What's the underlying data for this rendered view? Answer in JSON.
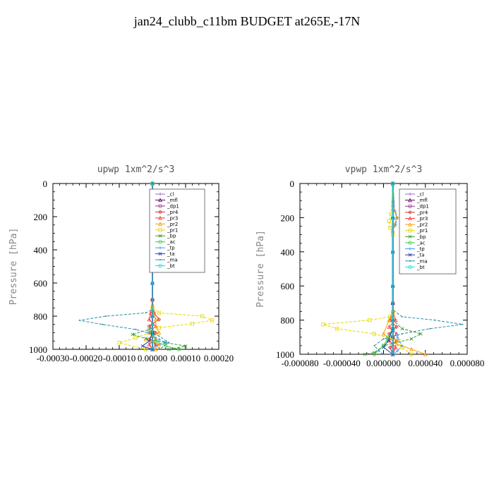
{
  "page_title": "jan24_clubb_c11bm  BUDGET at265E,-17N",
  "colors": {
    "_cl": "#9966cc",
    "_mfl": "#660066",
    "_dp1": "#993399",
    "_pr4": "#cc3333",
    "_pr3": "#ff3333",
    "_pr2": "#ff9900",
    "_pr1": "#e6d800",
    "_bp": "#339933",
    "_ac": "#33cc33",
    "_tp": "#3399ff",
    "_ta": "#1f3f9f",
    "_ma": "#2a8fa8",
    "_bt": "#00e5e5"
  },
  "chart_data": [
    {
      "type": "line",
      "title": "upwp   1xm^2/s^3",
      "ylabel": "Pressure [hPa]",
      "xlim": [
        -0.0003,
        0.0002
      ],
      "ylim": [
        1000,
        0
      ],
      "x_tick_labels": [
        "-0.00030",
        "-0.00020",
        "-0.00010",
        "0.00000",
        "0.00010",
        "0.00020"
      ],
      "y_tick_labels": [
        "0",
        "200",
        "400",
        "600",
        "800",
        "1000"
      ],
      "legend": [
        "_cl",
        "_mfl",
        "_dp1",
        "_pr4",
        "_pr3",
        "_pr2",
        "_pr1",
        "_bp",
        "_ac",
        "_tp",
        "_ta",
        "_ma",
        "_bt"
      ],
      "legend_position": "top-right",
      "series": [
        {
          "name": "_cl",
          "y": [
            0,
            200,
            400,
            600,
            700,
            800,
            900,
            1000
          ],
          "x": [
            0,
            0,
            0,
            0,
            0,
            0,
            0,
            0
          ]
        },
        {
          "name": "_mfl",
          "y": [
            0,
            200,
            400,
            600,
            700,
            800,
            900,
            1000
          ],
          "x": [
            0,
            0,
            0,
            0,
            0,
            0,
            0,
            0
          ]
        },
        {
          "name": "_dp1",
          "y": [
            0,
            200,
            400,
            600,
            700,
            800,
            900,
            1000
          ],
          "x": [
            0,
            0,
            0,
            0,
            0,
            0,
            0,
            0
          ]
        },
        {
          "name": "_pr4",
          "y": [
            0,
            700,
            780,
            820,
            860,
            900,
            940,
            970,
            1000
          ],
          "x": [
            0,
            0,
            5e-06,
            2e-05,
            -1e-05,
            1e-05,
            -1e-05,
            1e-05,
            0
          ]
        },
        {
          "name": "_pr3",
          "y": [
            0,
            700,
            780,
            820,
            860,
            900,
            940,
            970,
            1000
          ],
          "x": [
            0,
            0,
            -5e-06,
            -1e-05,
            1e-05,
            -1e-05,
            1e-05,
            -1e-05,
            0
          ]
        },
        {
          "name": "_pr2",
          "y": [
            0,
            750,
            820,
            860,
            900,
            940,
            970,
            1000
          ],
          "x": [
            0,
            0,
            1e-05,
            1e-05,
            2e-05,
            -2e-05,
            2e-05,
            1e-05
          ]
        },
        {
          "name": "_pr1",
          "y": [
            0,
            750,
            780,
            800,
            825,
            845,
            870,
            900,
            930,
            960,
            1000
          ],
          "x": [
            0,
            0,
            2e-05,
            0.00015,
            0.00018,
            0.00012,
            2e-05,
            -1e-05,
            -5e-05,
            -0.0001,
            -2e-05
          ]
        },
        {
          "name": "_bp",
          "y": [
            0,
            850,
            880,
            910,
            935,
            960,
            980,
            1000
          ],
          "x": [
            0,
            0,
            -1e-05,
            -6e-05,
            -2e-05,
            4e-05,
            0.0001,
            5e-05
          ]
        },
        {
          "name": "_ac",
          "y": [
            0,
            900,
            950,
            980,
            1000
          ],
          "x": [
            0,
            0,
            1e-05,
            4e-05,
            8e-05
          ]
        },
        {
          "name": "_tp",
          "y": [
            0,
            850,
            900,
            940,
            960,
            980,
            1000
          ],
          "x": [
            0,
            0,
            -1e-05,
            2e-05,
            4e-05,
            1e-05,
            0
          ]
        },
        {
          "name": "_ta",
          "y": [
            0,
            900,
            950,
            980,
            1000
          ],
          "x": [
            0,
            0,
            -1e-05,
            -3e-05,
            0
          ]
        },
        {
          "name": "_ma",
          "y": [
            0,
            760,
            780,
            800,
            825,
            850,
            880,
            920,
            960,
            1000
          ],
          "x": [
            0,
            0,
            -2e-05,
            -0.00014,
            -0.00022,
            -0.00015,
            -5e-05,
            2e-05,
            5e-05,
            2e-05
          ]
        },
        {
          "name": "_bt",
          "y": [
            0,
            200,
            400,
            600,
            800,
            1000
          ],
          "x": [
            0,
            0,
            0,
            0,
            0,
            0
          ]
        }
      ]
    },
    {
      "type": "line",
      "title": "vpwp   1xm^2/s^3",
      "ylabel": "Pressure [hPa]",
      "xlim": [
        -0.0001,
        8e-05
      ],
      "ylim": [
        1000,
        0
      ],
      "x_tick_labels": [
        "-0.000080",
        "-0.000040",
        "0.000000",
        "0.000040",
        "0.000080"
      ],
      "y_tick_labels": [
        "0",
        "200",
        "400",
        "600",
        "800",
        "1000"
      ],
      "legend": [
        "_cl",
        "_mfl",
        "_dp1",
        "_pr4",
        "_pr3",
        "_pr2",
        "_pr1",
        "_bp",
        "_ac",
        "_tp",
        "_ta",
        "_ma",
        "_bt"
      ],
      "legend_position": "top-right",
      "series": [
        {
          "name": "_cl",
          "y": [
            0,
            200,
            400,
            600,
            700,
            800,
            900,
            1000
          ],
          "x": [
            0,
            0,
            0,
            0,
            0,
            0,
            0,
            0
          ]
        },
        {
          "name": "_mfl",
          "y": [
            0,
            200,
            400,
            600,
            700,
            800,
            900,
            1000
          ],
          "x": [
            0,
            0,
            0,
            0,
            0,
            0,
            0,
            0
          ]
        },
        {
          "name": "_dp1",
          "y": [
            0,
            200,
            400,
            600,
            700,
            800,
            900,
            1000
          ],
          "x": [
            0,
            0,
            0,
            0,
            0,
            0,
            0,
            0
          ]
        },
        {
          "name": "_pr4",
          "y": [
            0,
            750,
            800,
            840,
            880,
            920,
            960,
            1000
          ],
          "x": [
            0,
            0,
            -3e-06,
            4e-06,
            -4e-06,
            4e-06,
            -3e-06,
            0
          ]
        },
        {
          "name": "_pr3",
          "y": [
            0,
            750,
            800,
            840,
            880,
            920,
            960,
            1000
          ],
          "x": [
            0,
            0,
            3e-06,
            -4e-06,
            4e-06,
            -4e-06,
            3e-06,
            0
          ]
        },
        {
          "name": "_pr2",
          "y": [
            0,
            160,
            200,
            240,
            280,
            740,
            800,
            880,
            940,
            970,
            1000
          ],
          "x": [
            0,
            2e-06,
            4e-06,
            2e-06,
            0,
            0,
            -4e-06,
            -1e-05,
            4e-06,
            2e-05,
            3.5e-05
          ]
        },
        {
          "name": "_pr1",
          "y": [
            0,
            180,
            220,
            260,
            300,
            760,
            780,
            800,
            825,
            850,
            880,
            920,
            960,
            1000
          ],
          "x": [
            0,
            -2e-06,
            -4e-06,
            -3e-06,
            0,
            0,
            -3e-06,
            -2.5e-05,
            -7.5e-05,
            -6e-05,
            -2e-05,
            6e-06,
            1e-05,
            2e-05
          ]
        },
        {
          "name": "_bp",
          "y": [
            0,
            800,
            850,
            880,
            910,
            950,
            990,
            1000
          ],
          "x": [
            0,
            0,
            1e-05,
            3e-05,
            2e-05,
            -1e-05,
            -2e-05,
            -3e-05
          ]
        },
        {
          "name": "_ac",
          "y": [
            0,
            850,
            900,
            950,
            1000
          ],
          "x": [
            0,
            0,
            -5e-06,
            -1e-05,
            -2e-05
          ]
        },
        {
          "name": "_tp",
          "y": [
            0,
            160,
            200,
            240,
            280,
            850,
            900,
            950,
            980,
            1000
          ],
          "x": [
            0,
            2e-06,
            5e-06,
            3e-06,
            0,
            0,
            5e-06,
            1e-05,
            5e-06,
            0
          ]
        },
        {
          "name": "_ta",
          "y": [
            0,
            850,
            920,
            960,
            1000
          ],
          "x": [
            0,
            0,
            -5e-06,
            -1e-05,
            0
          ]
        },
        {
          "name": "_ma",
          "y": [
            0,
            740,
            780,
            800,
            825,
            850,
            880,
            910,
            950,
            980,
            1000
          ],
          "x": [
            0,
            0,
            1e-05,
            4.5e-05,
            7.5e-05,
            4e-05,
            1e-05,
            -1e-05,
            -2e-05,
            -1.5e-05,
            -1e-05
          ]
        },
        {
          "name": "_bt",
          "y": [
            0,
            200,
            400,
            600,
            800,
            1000
          ],
          "x": [
            0,
            0,
            0,
            0,
            0,
            0
          ]
        }
      ]
    }
  ]
}
